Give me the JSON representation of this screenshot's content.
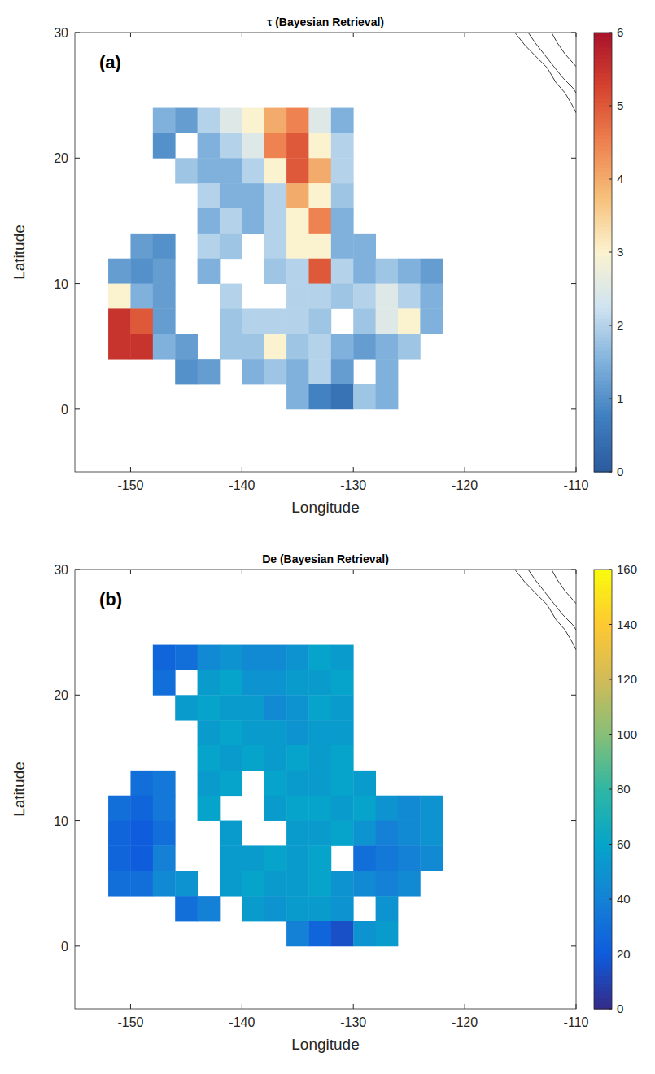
{
  "chart_data": [
    {
      "type": "heatmap",
      "title": "τ (Bayesian Retrieval)",
      "panel": "(a)",
      "x_label": "Longitude",
      "y_label": "Latitude",
      "xlim": [
        -155,
        -110
      ],
      "ylim": [
        -5,
        30
      ],
      "xticks": [
        -150,
        -140,
        -130,
        -120,
        -110
      ],
      "yticks": [
        0,
        10,
        20,
        30
      ],
      "x": [
        -151,
        -149,
        -147,
        -145,
        -143,
        -141,
        -139,
        -137,
        -135,
        -133,
        -131,
        -129,
        -127,
        -125,
        -123
      ],
      "y": [
        23,
        21,
        19,
        17,
        15,
        13,
        11,
        9,
        7,
        5,
        3,
        1
      ],
      "values": [
        [
          null,
          null,
          1.5,
          1.2,
          2,
          2.5,
          3,
          4,
          4.5,
          2.5,
          1.5,
          null,
          null,
          null,
          null
        ],
        [
          null,
          null,
          1.0,
          null,
          1.5,
          2,
          2.5,
          4.5,
          5,
          3,
          2,
          null,
          null,
          null,
          null
        ],
        [
          null,
          null,
          null,
          1.8,
          1.5,
          1.5,
          2,
          3,
          5,
          4,
          2,
          null,
          null,
          null,
          null
        ],
        [
          null,
          null,
          null,
          null,
          2,
          1.5,
          1.5,
          2,
          4,
          3,
          1.8,
          null,
          null,
          null,
          null
        ],
        [
          null,
          null,
          null,
          null,
          1.5,
          2,
          1.5,
          2,
          3,
          4.5,
          1.5,
          null,
          null,
          null,
          null
        ],
        [
          null,
          1.2,
          1.0,
          null,
          2,
          1.8,
          null,
          2,
          3,
          3,
          1.5,
          1.5,
          null,
          null,
          null
        ],
        [
          1.2,
          1.0,
          1.2,
          null,
          1.5,
          null,
          null,
          1.8,
          2,
          5,
          2,
          1.5,
          1.8,
          1.5,
          1.2
        ],
        [
          3,
          1.5,
          1.2,
          null,
          null,
          2,
          null,
          null,
          2,
          2,
          1.8,
          2,
          2.5,
          2,
          1.5
        ],
        [
          5.5,
          5,
          1.2,
          null,
          null,
          1.8,
          2,
          2,
          2,
          1.8,
          null,
          1.8,
          2.5,
          3,
          1.5
        ],
        [
          5.5,
          5.5,
          1.5,
          1.2,
          null,
          1.8,
          1.8,
          3,
          1.8,
          2,
          1.5,
          1.2,
          1.5,
          1.8,
          null
        ],
        [
          null,
          null,
          null,
          1,
          1.2,
          null,
          1.5,
          1.8,
          1.5,
          2,
          1.2,
          null,
          1.5,
          null,
          null
        ],
        [
          null,
          null,
          null,
          null,
          null,
          null,
          null,
          null,
          1.5,
          0.8,
          0.5,
          1.8,
          1.5,
          null,
          null
        ]
      ],
      "clim": [
        0,
        6
      ],
      "cticks": [
        0,
        1,
        2,
        3,
        4,
        5,
        6
      ],
      "color": "RdBu"
    },
    {
      "type": "heatmap",
      "title": "De (Bayesian Retrieval)",
      "panel": "(b)",
      "x_label": "Longitude",
      "y_label": "Latitude",
      "xlim": [
        -155,
        -110
      ],
      "ylim": [
        -5,
        30
      ],
      "xticks": [
        -150,
        -140,
        -130,
        -120,
        -110
      ],
      "yticks": [
        0,
        10,
        20,
        30
      ],
      "x": [
        -151,
        -149,
        -147,
        -145,
        -143,
        -141,
        -139,
        -137,
        -135,
        -133,
        -131,
        -129,
        -127,
        -125,
        -123
      ],
      "y": [
        23,
        21,
        19,
        17,
        15,
        13,
        11,
        9,
        7,
        5,
        3,
        1
      ],
      "values": [
        [
          null,
          null,
          25,
          30,
          45,
          50,
          45,
          45,
          50,
          60,
          55,
          null,
          null,
          null,
          null
        ],
        [
          null,
          null,
          30,
          null,
          55,
          60,
          50,
          50,
          55,
          55,
          60,
          null,
          null,
          null,
          null
        ],
        [
          null,
          null,
          null,
          55,
          60,
          55,
          55,
          45,
          50,
          60,
          55,
          null,
          null,
          null,
          null
        ],
        [
          null,
          null,
          null,
          null,
          55,
          60,
          55,
          55,
          50,
          55,
          55,
          null,
          null,
          null,
          null
        ],
        [
          null,
          null,
          null,
          null,
          60,
          55,
          60,
          55,
          60,
          55,
          60,
          null,
          null,
          null,
          null
        ],
        [
          null,
          30,
          35,
          null,
          55,
          60,
          null,
          60,
          55,
          55,
          60,
          55,
          null,
          null,
          null
        ],
        [
          30,
          25,
          35,
          null,
          60,
          null,
          null,
          55,
          60,
          60,
          55,
          60,
          50,
          45,
          50
        ],
        [
          25,
          20,
          30,
          null,
          null,
          55,
          null,
          null,
          55,
          55,
          60,
          50,
          40,
          45,
          50
        ],
        [
          25,
          20,
          40,
          null,
          null,
          55,
          55,
          60,
          55,
          60,
          null,
          30,
          35,
          40,
          45
        ],
        [
          30,
          30,
          45,
          50,
          null,
          55,
          60,
          55,
          55,
          60,
          50,
          45,
          40,
          45,
          null
        ],
        [
          null,
          null,
          null,
          30,
          40,
          null,
          55,
          50,
          55,
          55,
          50,
          null,
          50,
          null,
          null
        ],
        [
          null,
          null,
          null,
          null,
          null,
          null,
          null,
          null,
          40,
          25,
          15,
          50,
          55,
          null,
          null
        ]
      ],
      "clim": [
        0,
        160
      ],
      "cticks": [
        0,
        20,
        40,
        60,
        80,
        100,
        120,
        140,
        160
      ],
      "color": "parula"
    }
  ]
}
